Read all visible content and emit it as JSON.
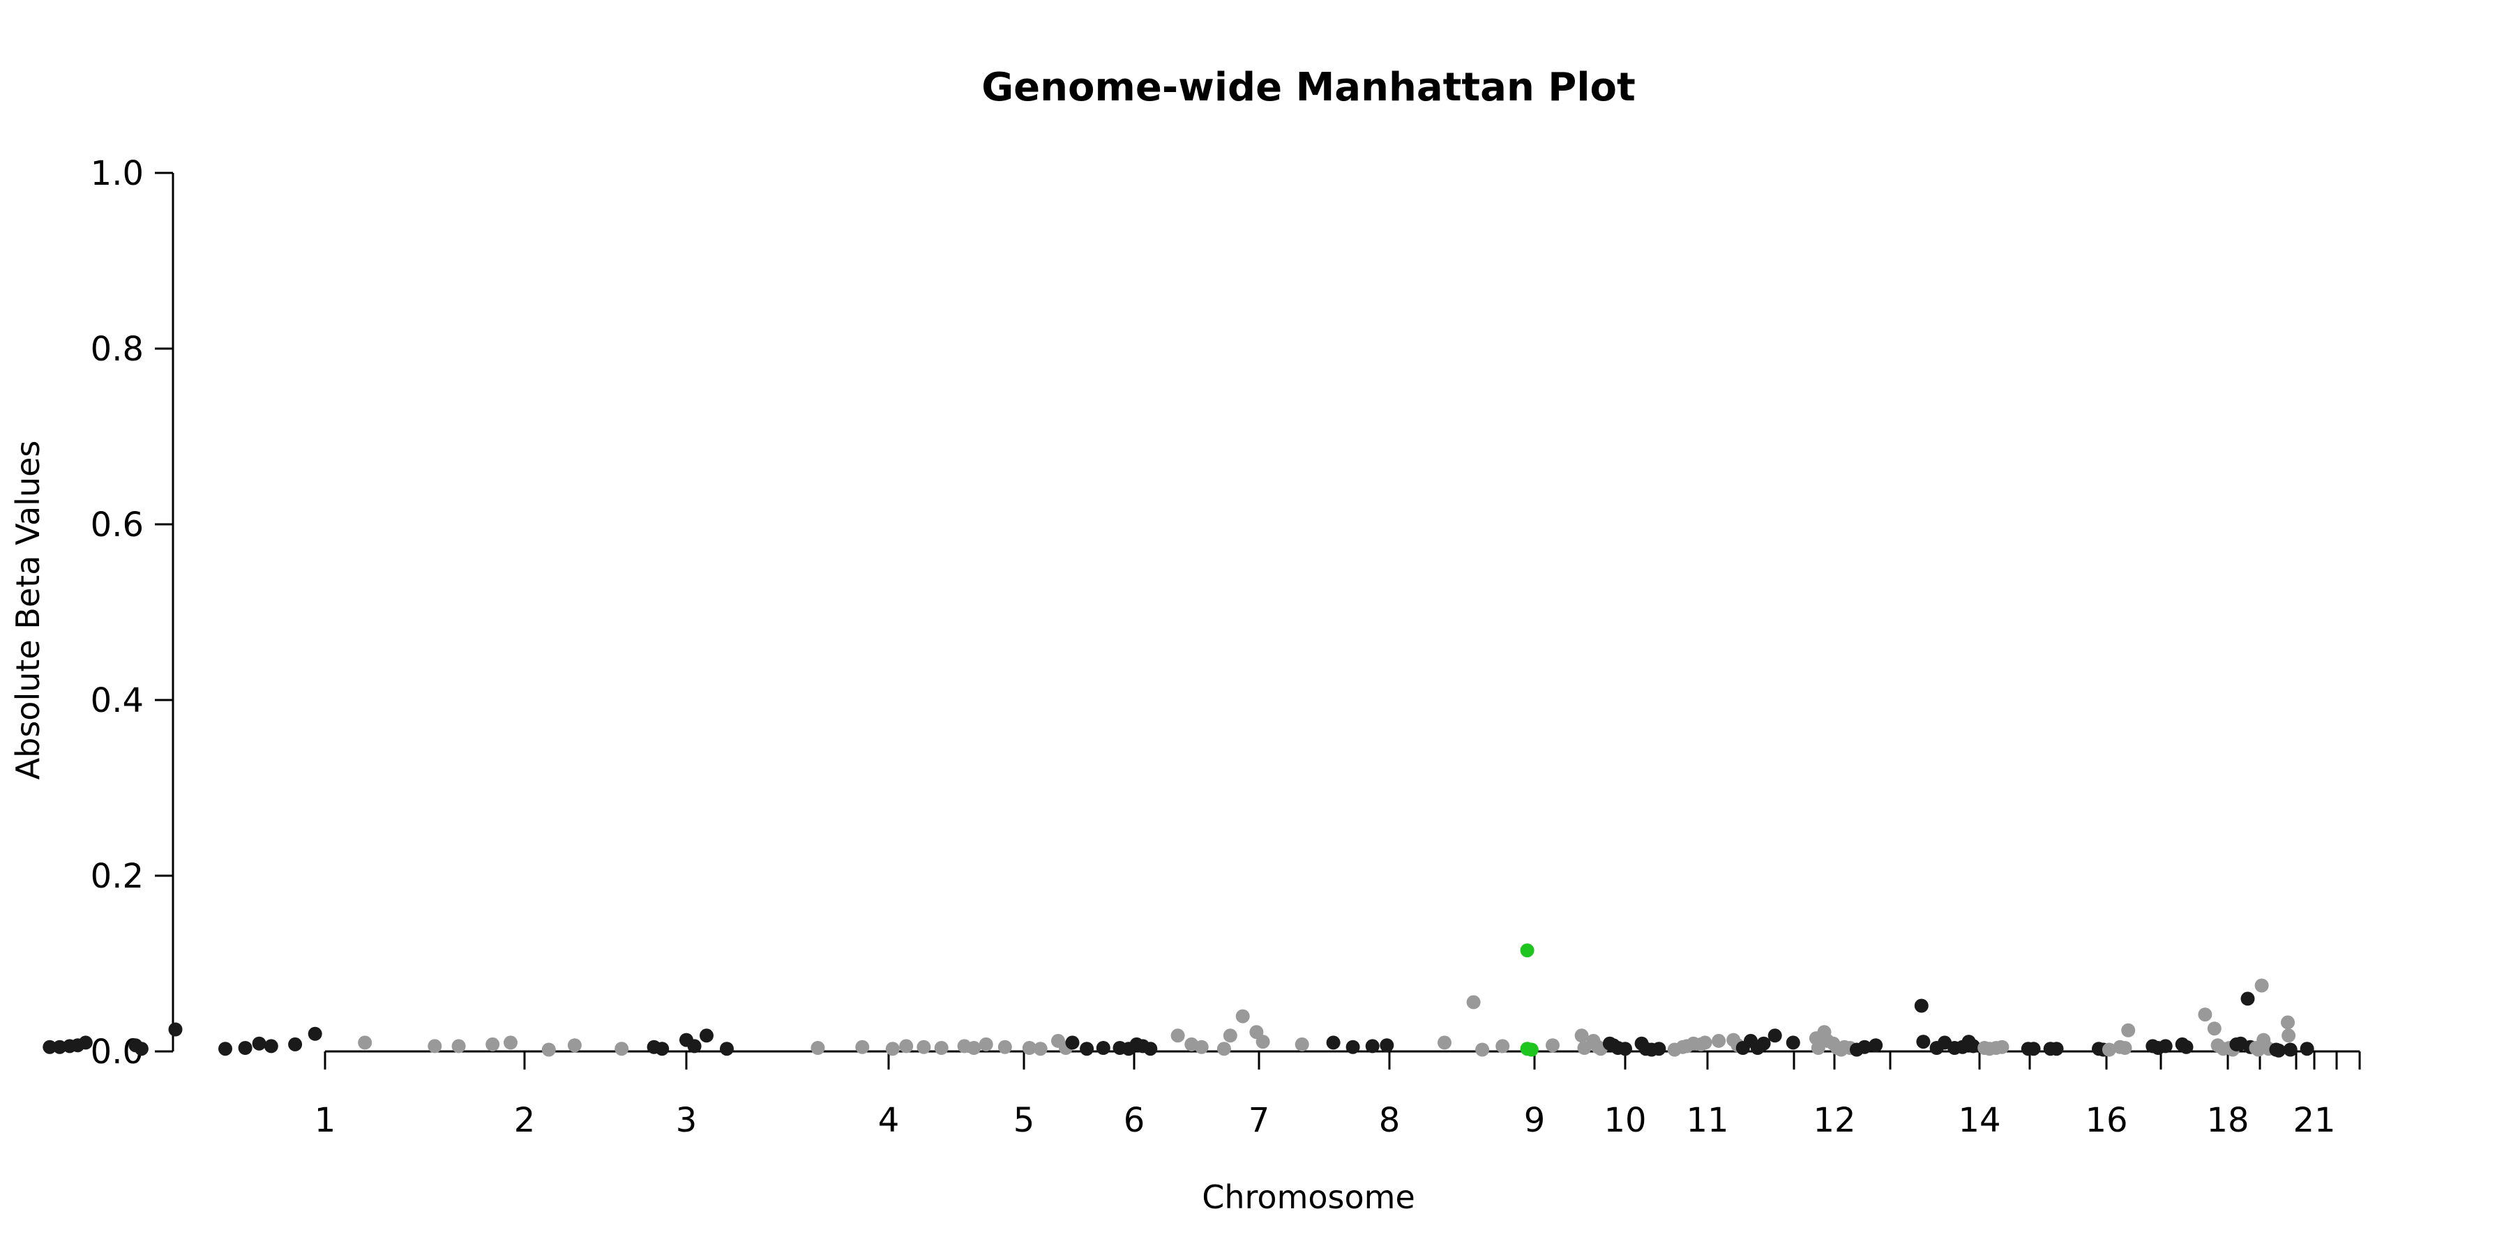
{
  "chart_data": {
    "type": "scatter",
    "title": "Genome-wide Manhattan Plot",
    "xlabel": "Chromosome",
    "ylabel": "Absolute Beta Values",
    "ylim": [
      0,
      1
    ],
    "yticks": [
      "0.0",
      "0.2",
      "0.4",
      "0.6",
      "0.8",
      "1.0"
    ],
    "grid": false,
    "legend": "none",
    "colors": {
      "odd_chromosome": "#1a1a1a",
      "even_chromosome": "#999999",
      "highlight": "#1ec51e"
    },
    "chromosome_ticks": [
      {
        "label": "1",
        "pos": 1.0
      },
      {
        "label": "2",
        "pos": 2.0
      },
      {
        "label": "3",
        "pos": 3.0
      },
      {
        "label": "4",
        "pos": 4.0
      },
      {
        "label": "5",
        "pos": 5.0
      },
      {
        "label": "6",
        "pos": 6.0
      },
      {
        "label": "7",
        "pos": 7.0
      },
      {
        "label": "8",
        "pos": 8.0
      },
      {
        "label": "9",
        "pos": 9.0
      },
      {
        "label": "10",
        "pos": 10.0
      },
      {
        "label": "11",
        "pos": 11.0
      },
      {
        "label": "",
        "pos": 12.0
      },
      {
        "label": "12",
        "pos": 13.0
      },
      {
        "label": "",
        "pos": 14.0
      },
      {
        "label": "14",
        "pos": 15.0
      },
      {
        "label": "",
        "pos": 16.0
      },
      {
        "label": "16",
        "pos": 17.0
      },
      {
        "label": "",
        "pos": 18.0
      },
      {
        "label": "18",
        "pos": 19.0
      },
      {
        "label": "",
        "pos": 20.0
      },
      {
        "label": "",
        "pos": 21.0
      },
      {
        "label": "21",
        "pos": 22.0
      },
      {
        "label": "",
        "pos": 23.0
      },
      {
        "label": "",
        "pos": 24.0
      }
    ],
    "series": [
      {
        "values": [
          [
            -0.38,
            0.005
          ],
          [
            -0.33,
            0.005
          ],
          [
            -0.28,
            0.006
          ],
          [
            -0.24,
            0.007
          ],
          [
            -0.2,
            0.01
          ],
          [
            0.05,
            0.007
          ],
          [
            0.08,
            0.003
          ],
          [
            0.25,
            0.025
          ],
          [
            0.5,
            0.003
          ],
          [
            0.6,
            0.004
          ],
          [
            0.67,
            0.009
          ],
          [
            0.73,
            0.006
          ],
          [
            0.85,
            0.008
          ],
          [
            0.95,
            0.02
          ]
        ]
      },
      {
        "values": [
          [
            1.2,
            0.01
          ],
          [
            1.55,
            0.006
          ],
          [
            1.67,
            0.006
          ],
          [
            1.84,
            0.008
          ],
          [
            1.93,
            0.01
          ],
          [
            2.15,
            0.002
          ],
          [
            2.31,
            0.007
          ],
          [
            2.6,
            0.003
          ]
        ]
      },
      {
        "values": [
          [
            2.8,
            0.005
          ],
          [
            2.85,
            0.003
          ],
          [
            3.0,
            0.013
          ],
          [
            3.04,
            0.006
          ],
          [
            3.1,
            0.018
          ],
          [
            3.2,
            0.003
          ]
        ]
      },
      {
        "values": [
          [
            3.65,
            0.004
          ],
          [
            3.87,
            0.005
          ],
          [
            4.03,
            0.003
          ],
          [
            4.13,
            0.006
          ],
          [
            4.26,
            0.005
          ],
          [
            4.39,
            0.004
          ],
          [
            4.56,
            0.006
          ],
          [
            4.63,
            0.004
          ],
          [
            4.72,
            0.008
          ],
          [
            4.86,
            0.005
          ],
          [
            5.05,
            0.004
          ],
          [
            5.15,
            0.003
          ],
          [
            5.31,
            0.012
          ],
          [
            5.38,
            0.004
          ]
        ]
      },
      {
        "values": [
          [
            5.44,
            0.01
          ],
          [
            5.57,
            0.003
          ],
          [
            5.72,
            0.004
          ],
          [
            5.87,
            0.004
          ],
          [
            5.95,
            0.003
          ],
          [
            6.02,
            0.008
          ],
          [
            6.07,
            0.006
          ],
          [
            6.13,
            0.003
          ]
        ]
      },
      {
        "values": [
          [
            6.35,
            0.018
          ],
          [
            6.46,
            0.008
          ],
          [
            6.54,
            0.005
          ],
          [
            6.72,
            0.003
          ],
          [
            6.77,
            0.018
          ],
          [
            6.87,
            0.04
          ],
          [
            6.98,
            0.022
          ],
          [
            7.03,
            0.011
          ],
          [
            7.33,
            0.008
          ]
        ]
      },
      {
        "values": [
          [
            7.57,
            0.01
          ],
          [
            7.72,
            0.005
          ],
          [
            7.87,
            0.006
          ],
          [
            7.98,
            0.007
          ]
        ]
      },
      {
        "values": [
          [
            8.38,
            0.01
          ],
          [
            8.58,
            0.056
          ],
          [
            8.64,
            0.002
          ],
          [
            8.78,
            0.006
          ],
          [
            9.2,
            0.007
          ],
          [
            9.52,
            0.018
          ],
          [
            9.55,
            0.004
          ],
          [
            9.65,
            0.012
          ],
          [
            9.7,
            0.005
          ],
          [
            9.73,
            0.003
          ]
        ]
      },
      {
        "values": [
          [
            9.83,
            0.009
          ],
          [
            9.87,
            0.007
          ],
          [
            9.92,
            0.004
          ],
          [
            10.0,
            0.003
          ],
          [
            10.2,
            0.009
          ],
          [
            10.25,
            0.003
          ],
          [
            10.32,
            0.002
          ],
          [
            10.41,
            0.003
          ]
        ]
      },
      {
        "values": [
          [
            10.6,
            0.002
          ],
          [
            10.7,
            0.005
          ],
          [
            10.75,
            0.006
          ],
          [
            10.83,
            0.009
          ],
          [
            10.92,
            0.008
          ],
          [
            10.97,
            0.01
          ],
          [
            11.13,
            0.012
          ],
          [
            11.3,
            0.013
          ],
          [
            11.35,
            0.007
          ]
        ]
      },
      {
        "values": [
          [
            11.41,
            0.004
          ],
          [
            11.5,
            0.012
          ],
          [
            11.58,
            0.004
          ],
          [
            11.65,
            0.009
          ],
          [
            11.78,
            0.018
          ],
          [
            11.99,
            0.01
          ]
        ]
      },
      {
        "values": [
          [
            12.55,
            0.015
          ],
          [
            12.6,
            0.004
          ],
          [
            12.75,
            0.022
          ],
          [
            12.83,
            0.012
          ],
          [
            12.97,
            0.009
          ],
          [
            13.05,
            0.004
          ],
          [
            13.12,
            0.002
          ],
          [
            13.18,
            0.005
          ],
          [
            13.28,
            0.004
          ]
        ]
      },
      {
        "values": [
          [
            13.4,
            0.002
          ],
          [
            13.54,
            0.005
          ],
          [
            13.74,
            0.007
          ],
          [
            14.35,
            0.052
          ],
          [
            14.37,
            0.011
          ],
          [
            14.52,
            0.004
          ],
          [
            14.61,
            0.01
          ],
          [
            14.72,
            0.004
          ],
          [
            14.81,
            0.005
          ],
          [
            14.88,
            0.011
          ],
          [
            14.93,
            0.006
          ]
        ]
      },
      {
        "values": [
          [
            15.1,
            0.004
          ],
          [
            15.2,
            0.003
          ],
          [
            15.33,
            0.004
          ],
          [
            15.45,
            0.005
          ]
        ]
      },
      {
        "values": [
          [
            15.97,
            0.003
          ],
          [
            16.05,
            0.003
          ],
          [
            16.27,
            0.003
          ],
          [
            16.35,
            0.003
          ],
          [
            16.9,
            0.003
          ],
          [
            16.96,
            0.002
          ]
        ]
      },
      {
        "values": [
          [
            17.05,
            0.002
          ],
          [
            17.25,
            0.005
          ],
          [
            17.34,
            0.004
          ],
          [
            17.4,
            0.024
          ]
        ]
      },
      {
        "values": [
          [
            17.85,
            0.006
          ],
          [
            17.95,
            0.004
          ],
          [
            18.07,
            0.006
          ],
          [
            18.32,
            0.008
          ],
          [
            18.38,
            0.005
          ]
        ]
      },
      {
        "values": [
          [
            18.66,
            0.042
          ],
          [
            18.8,
            0.026
          ],
          [
            18.85,
            0.007
          ],
          [
            18.93,
            0.003
          ],
          [
            19.05,
            0.004
          ],
          [
            19.15,
            0.002
          ]
        ]
      },
      {
        "values": [
          [
            19.27,
            0.008
          ],
          [
            19.4,
            0.009
          ],
          [
            19.62,
            0.06
          ],
          [
            19.7,
            0.005
          ]
        ]
      },
      {
        "values": [
          [
            19.88,
            0.004
          ],
          [
            19.95,
            0.002
          ],
          [
            20.05,
            0.075
          ],
          [
            20.1,
            0.013
          ],
          [
            20.15,
            0.006
          ],
          [
            20.24,
            0.003
          ]
        ]
      },
      {
        "values": [
          [
            20.45,
            0.002
          ],
          [
            20.52,
            0.001
          ]
        ]
      },
      {
        "values": [
          [
            20.77,
            0.033
          ],
          [
            20.79,
            0.018
          ]
        ]
      },
      {
        "values": [
          [
            20.84,
            0.002
          ],
          [
            21.6,
            0.003
          ]
        ]
      }
    ],
    "highlight": [
      [
        8.95,
        0.115
      ],
      [
        8.95,
        0.003
      ],
      [
        8.98,
        0.002
      ]
    ]
  }
}
